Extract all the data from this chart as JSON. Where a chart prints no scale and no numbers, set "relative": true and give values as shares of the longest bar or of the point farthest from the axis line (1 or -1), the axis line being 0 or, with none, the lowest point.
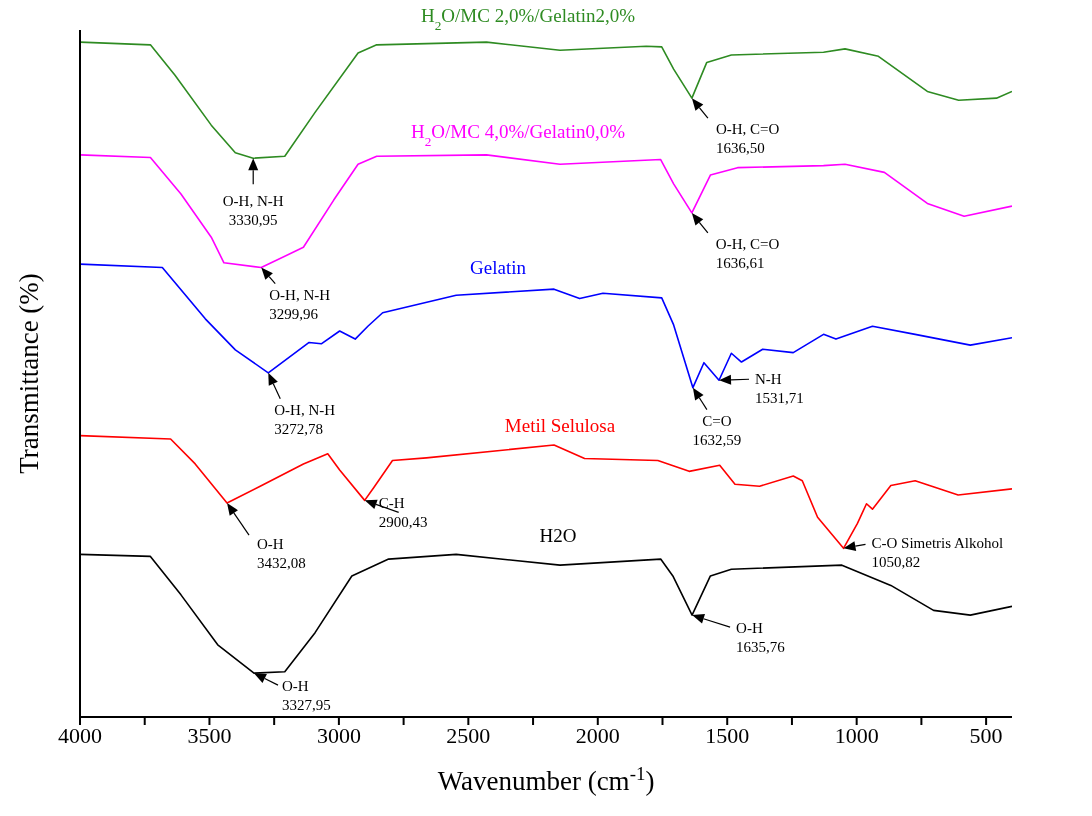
{
  "chart_data": {
    "type": "line",
    "relative": true,
    "xlabel": "Wavenumber (cm$^{-1}$)",
    "ylabel": "Transmittance (%)",
    "tick_labels": "x",
    "xlim": [
      4000,
      400
    ],
    "xticks": [
      4000,
      {
        "value": 3750,
        "label": null
      },
      3500,
      {
        "value": 3250,
        "label": null
      },
      3000,
      {
        "value": 2750,
        "label": null
      },
      2500,
      {
        "value": 2250,
        "label": null
      },
      2000,
      {
        "value": 1750,
        "label": null
      },
      1500,
      {
        "value": 1250,
        "label": null
      },
      1000,
      {
        "value": 750,
        "label": null
      },
      500
    ],
    "series": [
      {
        "name": "H$_{2}$O/MC 2,0%/Gelatin2,0%",
        "color": "#2e8b22",
        "x": [
          4000,
          3728,
          3633,
          3493,
          3400,
          3330.95,
          3209,
          3092,
          2926,
          2854,
          2430,
          2146,
          1813,
          1753,
          1707,
          1636.5,
          1579,
          1484,
          1128,
          1045,
          916,
          727,
          606,
          460,
          400
        ],
        "values": [
          1.0,
          0.996,
          0.951,
          0.877,
          0.836,
          0.828,
          0.831,
          0.896,
          0.984,
          0.996,
          1.0,
          0.988,
          0.994,
          0.993,
          0.96,
          0.917,
          0.97,
          0.981,
          0.985,
          0.99,
          0.979,
          0.927,
          0.914,
          0.917,
          0.927
        ]
      },
      {
        "name": "H$_{2}$O/MC 4,0%/Gelatin0,0%",
        "color": "#ff00ff",
        "x": [
          4000,
          3728,
          3610,
          3493,
          3444,
          3299.96,
          3137,
          3020,
          2926,
          2854,
          2430,
          2146,
          1757,
          1707,
          1636.61,
          1565,
          1460,
          1128,
          1045,
          893,
          727,
          585,
          400
        ],
        "values": [
          0.833,
          0.829,
          0.775,
          0.711,
          0.673,
          0.666,
          0.696,
          0.766,
          0.819,
          0.831,
          0.833,
          0.819,
          0.826,
          0.79,
          0.747,
          0.803,
          0.814,
          0.817,
          0.819,
          0.807,
          0.761,
          0.742,
          0.757
        ]
      },
      {
        "name": "Gelatin",
        "color": "#0000ff",
        "x": [
          4000,
          3682,
          3516,
          3400,
          3272.78,
          3115,
          3068,
          2997,
          2937,
          2888,
          2831,
          2547,
          2169,
          2070,
          1980,
          1753,
          1707,
          1632.59,
          1590,
          1531.71,
          1484,
          1445,
          1363,
          1245,
          1128,
          1080,
          939,
          774,
          561,
          400
        ],
        "values": [
          0.671,
          0.666,
          0.59,
          0.544,
          0.51,
          0.555,
          0.553,
          0.572,
          0.56,
          0.579,
          0.599,
          0.625,
          0.634,
          0.62,
          0.628,
          0.621,
          0.581,
          0.488,
          0.525,
          0.499,
          0.539,
          0.526,
          0.545,
          0.54,
          0.567,
          0.56,
          0.579,
          0.567,
          0.551,
          0.562
        ]
      },
      {
        "name": "Metil Selulosa",
        "color": "#ff0000",
        "x": [
          4000,
          3650,
          3555,
          3432.08,
          3304,
          3137,
          3043,
          2997,
          2900.43,
          2865,
          2793,
          2662,
          2169,
          2051,
          1768,
          1647,
          1529,
          1470,
          1375,
          1245,
          1210,
          1151,
          1050.82,
          997,
          962,
          939,
          868,
          774,
          608,
          400
        ],
        "values": [
          0.417,
          0.412,
          0.375,
          0.317,
          0.342,
          0.375,
          0.39,
          0.366,
          0.321,
          0.34,
          0.38,
          0.384,
          0.403,
          0.383,
          0.38,
          0.364,
          0.373,
          0.345,
          0.342,
          0.357,
          0.35,
          0.296,
          0.25,
          0.287,
          0.316,
          0.308,
          0.343,
          0.35,
          0.329,
          0.338
        ]
      },
      {
        "name": "H2O",
        "color": "#000000",
        "x": [
          4000,
          3728,
          3610,
          3468,
          3327.95,
          3209,
          3092,
          2950,
          2808,
          2547,
          2146,
          1757,
          1710,
          1635.76,
          1565,
          1484,
          1057,
          868,
          703,
          561,
          400
        ],
        "values": [
          0.241,
          0.238,
          0.181,
          0.107,
          0.065,
          0.067,
          0.125,
          0.209,
          0.234,
          0.241,
          0.225,
          0.234,
          0.209,
          0.151,
          0.209,
          0.219,
          0.225,
          0.195,
          0.158,
          0.151,
          0.164
        ]
      }
    ],
    "annotations": [
      {
        "text": "O-H, N-H\n3330,95",
        "x": 3330.95,
        "y": 0.828
      },
      {
        "text": "O-H, C=O\n1636,50",
        "x": 1636.5,
        "y": 0.917
      },
      {
        "text": "O-H, N-H\n3299,96",
        "x": 3299.96,
        "y": 0.666
      },
      {
        "text": "O-H, C=O\n1636,61",
        "x": 1636.61,
        "y": 0.747
      },
      {
        "text": "O-H, N-H\n3272,78",
        "x": 3272.78,
        "y": 0.51
      },
      {
        "text": "C=O\n1632,59",
        "x": 1632.59,
        "y": 0.488
      },
      {
        "text": "N-H\n1531,71",
        "x": 1531.71,
        "y": 0.499
      },
      {
        "text": "O-H\n3432,08",
        "x": 3432.08,
        "y": 0.317
      },
      {
        "text": "C-H\n2900,43",
        "x": 2900.43,
        "y": 0.321
      },
      {
        "text": "C-O Simetris Alkohol\n1050,82",
        "x": 1050.82,
        "y": 0.25
      },
      {
        "text": "O-H\n1635,76",
        "x": 1635.76,
        "y": 0.151
      },
      {
        "text": "O-H\n3327,95",
        "x": 3327.95,
        "y": 0.065
      }
    ]
  }
}
